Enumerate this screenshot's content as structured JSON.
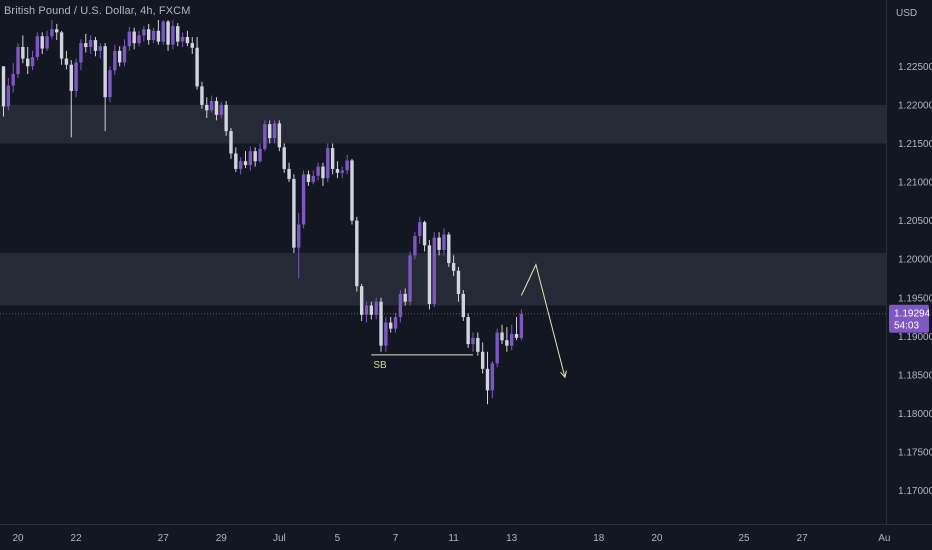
{
  "header": {
    "title": "British Pound / U.S. Dollar, 4h, FXCM"
  },
  "chart_data": {
    "type": "candlestick",
    "symbol": "British Pound / U.S. Dollar",
    "timeframe": "4h",
    "exchange": "FXCM",
    "currency_label": "USD",
    "last_price": "1.19294",
    "countdown": "54:03",
    "y_ticks": [
      "1.22500",
      "1.22000",
      "1.21500",
      "1.21000",
      "1.20500",
      "1.20000",
      "1.19500",
      "1.19000",
      "1.18500",
      "1.18000",
      "1.17500",
      "1.17000"
    ],
    "ylim": [
      1.1675,
      1.231
    ],
    "x_ticks": [
      {
        "label": "20",
        "bar": 3
      },
      {
        "label": "22",
        "bar": 15
      },
      {
        "label": "27",
        "bar": 33
      },
      {
        "label": "29",
        "bar": 45
      },
      {
        "label": "Jul",
        "bar": 57
      },
      {
        "label": "5",
        "bar": 69
      },
      {
        "label": "7",
        "bar": 81
      },
      {
        "label": "11",
        "bar": 93
      },
      {
        "label": "13",
        "bar": 105
      },
      {
        "label": "18",
        "bar": 123
      },
      {
        "label": "20",
        "bar": 135
      },
      {
        "label": "25",
        "bar": 153
      },
      {
        "label": "27",
        "bar": 165
      },
      {
        "label": "Au",
        "bar": 182
      }
    ],
    "zones": [
      {
        "from": 1.215,
        "to": 1.22
      },
      {
        "from": 1.194,
        "to": 1.2008
      }
    ],
    "annotations": [
      {
        "type": "level",
        "label": "SB",
        "price": 1.1876,
        "from_bar": 76,
        "to_bar": 97
      },
      {
        "type": "projection",
        "points": [
          [
            107,
            1.1953
          ],
          [
            110,
            1.1993
          ],
          [
            116,
            1.1847
          ]
        ]
      }
    ],
    "candles": [
      [
        1.225,
        1.225,
        1.2185,
        1.2198
      ],
      [
        1.2198,
        1.2235,
        1.2193,
        1.2225
      ],
      [
        1.2225,
        1.2254,
        1.2216,
        1.224
      ],
      [
        1.224,
        1.228,
        1.2235,
        1.2275
      ],
      [
        1.2275,
        1.229,
        1.2254,
        1.226
      ],
      [
        1.226,
        1.2275,
        1.224,
        1.225
      ],
      [
        1.225,
        1.227,
        1.2245,
        1.2262
      ],
      [
        1.2262,
        1.2294,
        1.2258,
        1.2289
      ],
      [
        1.2289,
        1.2294,
        1.2266,
        1.2273
      ],
      [
        1.2273,
        1.2296,
        1.227,
        1.2289
      ],
      [
        1.2289,
        1.231,
        1.2285,
        1.2298
      ],
      [
        1.2298,
        1.2305,
        1.2284,
        1.2294
      ],
      [
        1.2294,
        1.2296,
        1.2252,
        1.226
      ],
      [
        1.226,
        1.227,
        1.2246,
        1.2252
      ],
      [
        1.2252,
        1.2258,
        1.2158,
        1.2218
      ],
      [
        1.2218,
        1.226,
        1.221,
        1.2255
      ],
      [
        1.2255,
        1.2285,
        1.2245,
        1.228
      ],
      [
        1.228,
        1.2292,
        1.2268,
        1.2275
      ],
      [
        1.2275,
        1.229,
        1.2266,
        1.2284
      ],
      [
        1.2284,
        1.2288,
        1.2263,
        1.227
      ],
      [
        1.227,
        1.228,
        1.226,
        1.2276
      ],
      [
        1.2276,
        1.228,
        1.2166,
        1.221
      ],
      [
        1.221,
        1.225,
        1.2203,
        1.2245
      ],
      [
        1.2245,
        1.2278,
        1.2239,
        1.227
      ],
      [
        1.227,
        1.2276,
        1.225,
        1.2255
      ],
      [
        1.2255,
        1.2285,
        1.225,
        1.2276
      ],
      [
        1.2276,
        1.2301,
        1.227,
        1.2295
      ],
      [
        1.2295,
        1.23,
        1.2272,
        1.228
      ],
      [
        1.228,
        1.2296,
        1.2276,
        1.229
      ],
      [
        1.229,
        1.2302,
        1.2282,
        1.2298
      ],
      [
        1.2298,
        1.2305,
        1.2278,
        1.2284
      ],
      [
        1.2284,
        1.23,
        1.228,
        1.2296
      ],
      [
        1.2296,
        1.231,
        1.2278,
        1.2282
      ],
      [
        1.2282,
        1.231,
        1.2278,
        1.2308
      ],
      [
        1.2308,
        1.231,
        1.227,
        1.2278
      ],
      [
        1.2278,
        1.231,
        1.2272,
        1.2302
      ],
      [
        1.2302,
        1.2306,
        1.2276,
        1.2282
      ],
      [
        1.2282,
        1.2294,
        1.2275,
        1.2288
      ],
      [
        1.2288,
        1.2296,
        1.2276,
        1.228
      ],
      [
        1.228,
        1.2288,
        1.2266,
        1.2274
      ],
      [
        1.2274,
        1.2288,
        1.222,
        1.2224
      ],
      [
        1.2224,
        1.223,
        1.2195,
        1.22
      ],
      [
        1.22,
        1.221,
        1.2183,
        1.2193
      ],
      [
        1.2193,
        1.2212,
        1.219,
        1.2205
      ],
      [
        1.2205,
        1.221,
        1.218,
        1.2187
      ],
      [
        1.2187,
        1.2204,
        1.2182,
        1.22
      ],
      [
        1.22,
        1.2205,
        1.216,
        1.2166
      ],
      [
        1.2166,
        1.217,
        1.213,
        1.2137
      ],
      [
        1.2137,
        1.2145,
        1.2113,
        1.2117
      ],
      [
        1.2117,
        1.2132,
        1.211,
        1.2127
      ],
      [
        1.2127,
        1.214,
        1.2118,
        1.2122
      ],
      [
        1.2122,
        1.2146,
        1.2115,
        1.214
      ],
      [
        1.214,
        1.2145,
        1.212,
        1.2127
      ],
      [
        1.2127,
        1.215,
        1.2125,
        1.2143
      ],
      [
        1.2143,
        1.218,
        1.214,
        1.2175
      ],
      [
        1.2175,
        1.218,
        1.215,
        1.2157
      ],
      [
        1.2157,
        1.218,
        1.215,
        1.2176
      ],
      [
        1.2176,
        1.218,
        1.214,
        1.2145
      ],
      [
        1.2145,
        1.215,
        1.2112,
        1.2117
      ],
      [
        1.2117,
        1.2125,
        1.21,
        1.2104
      ],
      [
        1.2104,
        1.211,
        1.2008,
        1.2015
      ],
      [
        1.2015,
        1.206,
        1.1975,
        1.2045
      ],
      [
        1.2045,
        1.2115,
        1.204,
        1.211
      ],
      [
        1.211,
        1.2115,
        1.2095,
        1.21
      ],
      [
        1.21,
        1.2115,
        1.2097,
        1.2108
      ],
      [
        1.2108,
        1.2125,
        1.2102,
        1.212
      ],
      [
        1.212,
        1.2125,
        1.2095,
        1.2105
      ],
      [
        1.2105,
        1.215,
        1.21,
        1.2144
      ],
      [
        1.2144,
        1.215,
        1.211,
        1.2117
      ],
      [
        1.2117,
        1.2127,
        1.2105,
        1.2112
      ],
      [
        1.2112,
        1.212,
        1.2105,
        1.2115
      ],
      [
        1.2115,
        1.2135,
        1.211,
        1.2128
      ],
      [
        1.2128,
        1.213,
        1.2045,
        1.205
      ],
      [
        1.205,
        1.2055,
        1.1958,
        1.1965
      ],
      [
        1.1965,
        1.1968,
        1.192,
        1.1928
      ],
      [
        1.1928,
        1.1945,
        1.1918,
        1.194
      ],
      [
        1.194,
        1.1945,
        1.1922,
        1.1928
      ],
      [
        1.1928,
        1.195,
        1.1922,
        1.1945
      ],
      [
        1.1945,
        1.195,
        1.188,
        1.1888
      ],
      [
        1.1888,
        1.1925,
        1.188,
        1.1918
      ],
      [
        1.1918,
        1.1925,
        1.1905,
        1.191
      ],
      [
        1.191,
        1.193,
        1.1905,
        1.1925
      ],
      [
        1.1925,
        1.196,
        1.1918,
        1.1955
      ],
      [
        1.1955,
        1.1962,
        1.194,
        1.1945
      ],
      [
        1.1945,
        1.201,
        1.194,
        1.2005
      ],
      [
        1.2005,
        1.2035,
        1.2,
        1.203
      ],
      [
        1.203,
        1.2055,
        1.202,
        1.2048
      ],
      [
        1.2048,
        1.205,
        1.201,
        1.2018
      ],
      [
        1.2018,
        1.2025,
        1.1935,
        1.1942
      ],
      [
        1.1942,
        1.2035,
        1.1938,
        1.2028
      ],
      [
        1.2028,
        1.2035,
        1.2005,
        1.2012
      ],
      [
        1.2012,
        1.204,
        1.2005,
        1.2032
      ],
      [
        1.2032,
        1.2035,
        1.199,
        1.1995
      ],
      [
        1.1995,
        1.2005,
        1.1978,
        1.1985
      ],
      [
        1.1985,
        1.199,
        1.1945,
        1.1955
      ],
      [
        1.1955,
        1.196,
        1.192,
        1.1925
      ],
      [
        1.1925,
        1.193,
        1.1885,
        1.189
      ],
      [
        1.189,
        1.1905,
        1.188,
        1.1898
      ],
      [
        1.1898,
        1.1905,
        1.1875,
        1.188
      ],
      [
        1.188,
        1.1892,
        1.1852,
        1.1858
      ],
      [
        1.1858,
        1.188,
        1.1812,
        1.183
      ],
      [
        1.183,
        1.1868,
        1.182,
        1.1865
      ],
      [
        1.1865,
        1.191,
        1.186,
        1.1905
      ],
      [
        1.1905,
        1.1915,
        1.189,
        1.1895
      ],
      [
        1.1895,
        1.1912,
        1.188,
        1.1888
      ],
      [
        1.1888,
        1.1915,
        1.1882,
        1.1903
      ],
      [
        1.1903,
        1.1925,
        1.1895,
        1.1898
      ],
      [
        1.1898,
        1.1935,
        1.1895,
        1.1929
      ]
    ]
  }
}
